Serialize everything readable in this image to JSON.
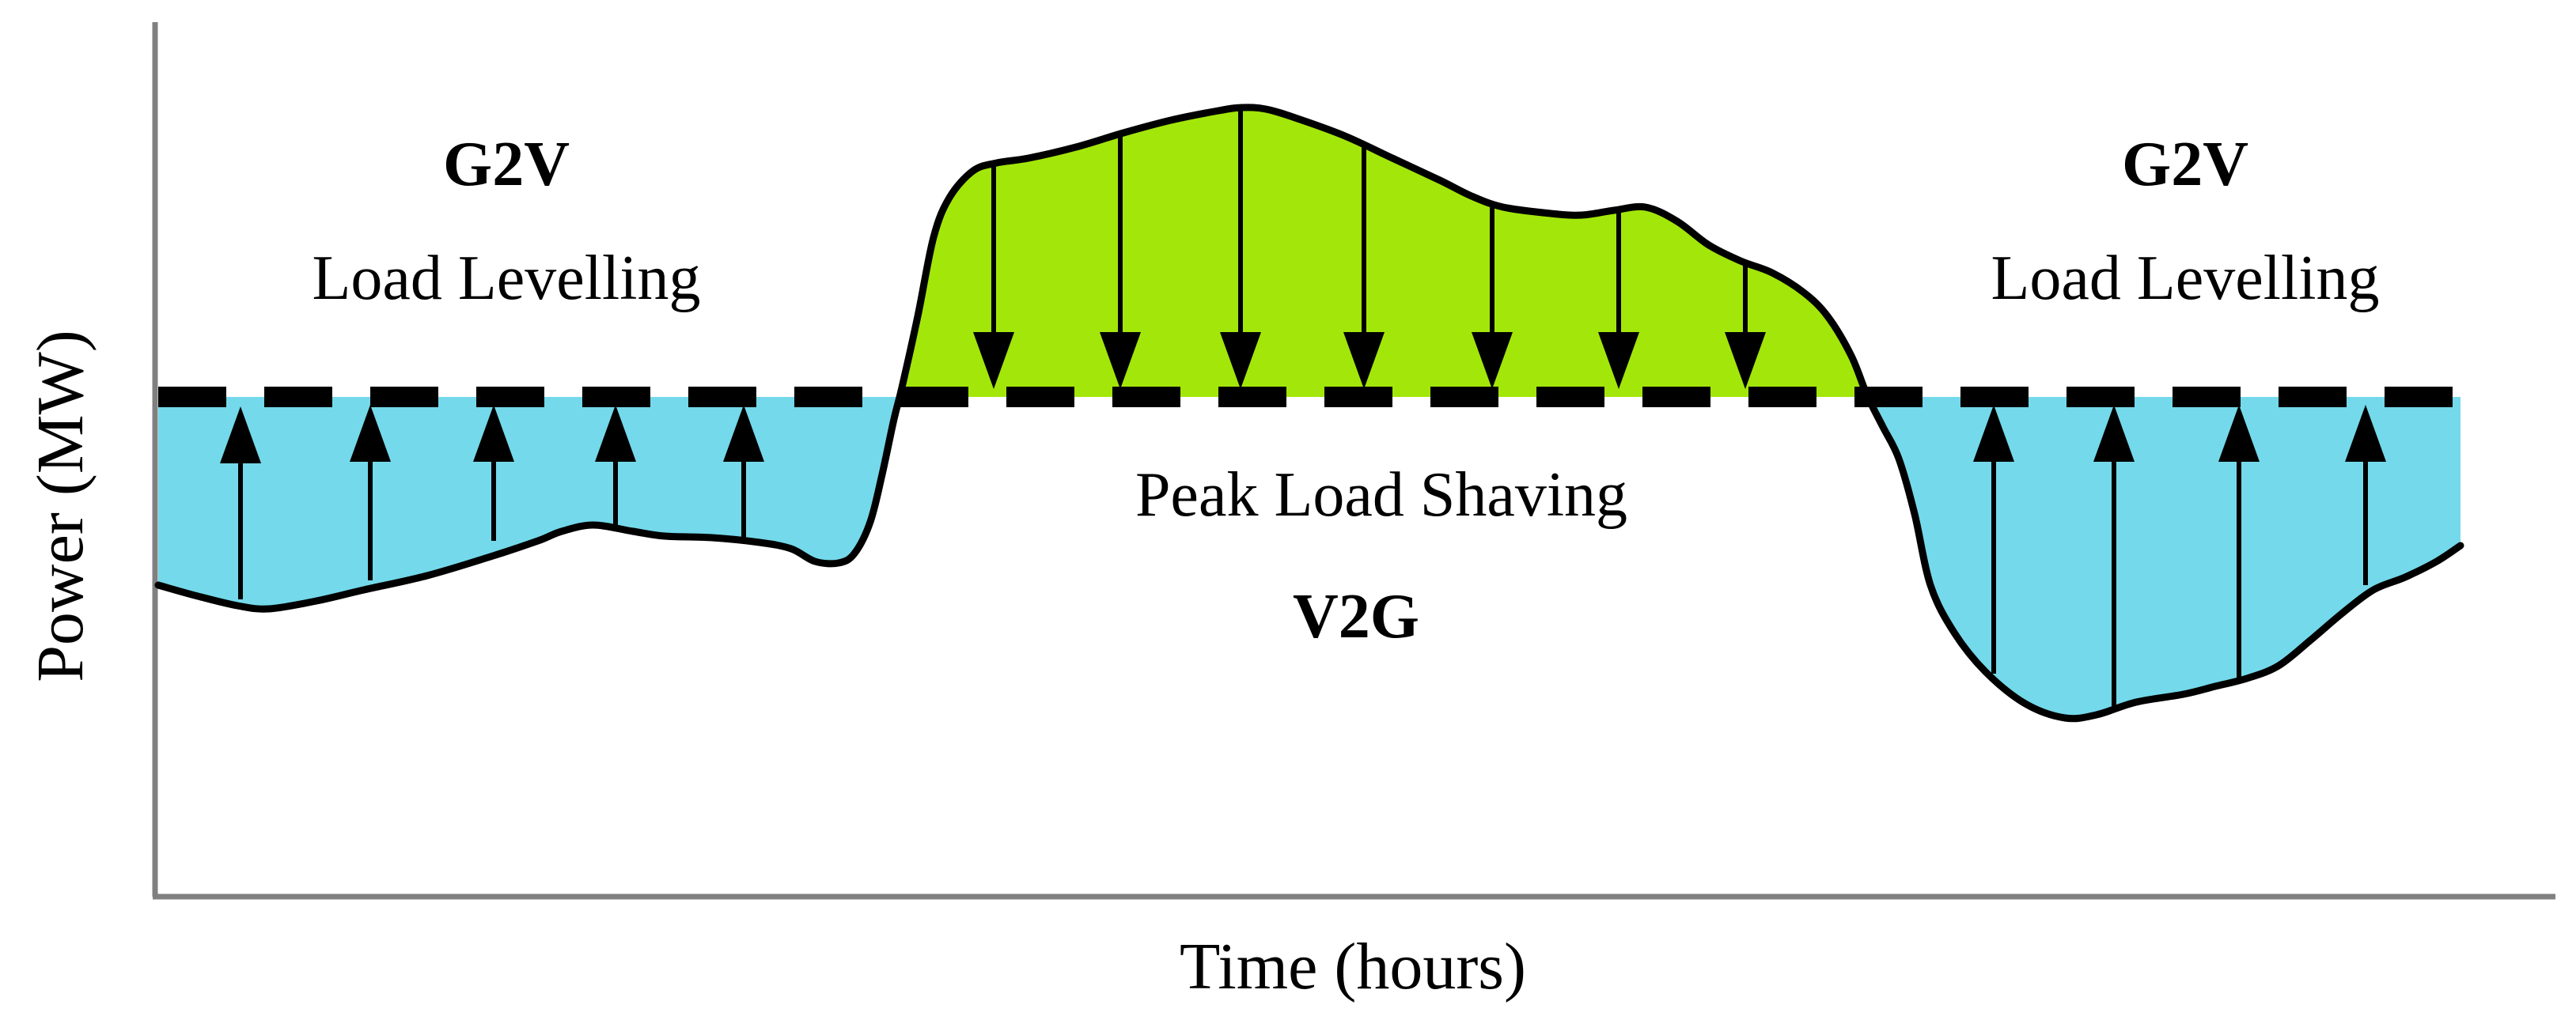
{
  "axes": {
    "x_label": "Time (hours)",
    "y_label": "Power (MW)"
  },
  "regions": {
    "left": {
      "mode": "G2V",
      "description": "Load Levelling"
    },
    "center": {
      "description": "Peak Load Shaving",
      "mode": "V2G"
    },
    "right": {
      "mode": "G2V",
      "description": "Load Levelling"
    }
  },
  "colors": {
    "valley_fill": "#74d9ea",
    "peak_fill": "#a3e60a",
    "line": "#000000",
    "axis": "#808080"
  },
  "icons": {
    "up_arrow": "up-arrow-icon",
    "down_arrow": "down-arrow-icon"
  }
}
